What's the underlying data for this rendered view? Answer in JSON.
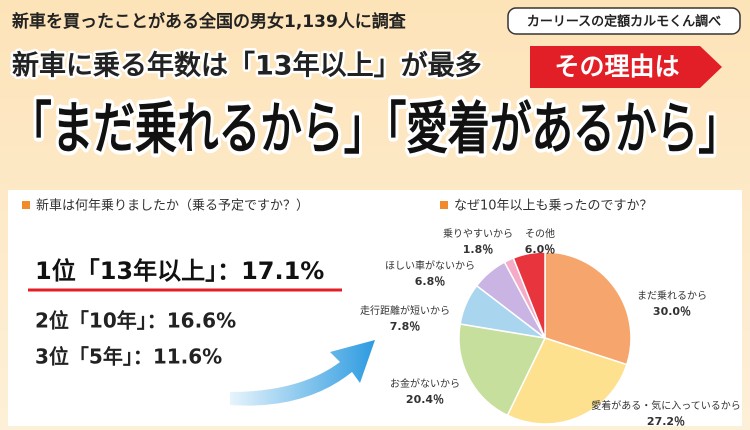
{
  "header": {
    "survey": "新車を買ったことがある全国の男女1,139人に調査",
    "source": "カーリースの定額カルモくん調べ",
    "headline": "新車に乗る年数は「13年以上」が最多",
    "tag": "その理由は",
    "main": "「まだ乗れるから」「愛着があるから」"
  },
  "ranking": {
    "question": "新車は何年乗りましたか（乗る予定ですか？）",
    "items": [
      "1位「13年以上」：17.1%",
      "2位「10年」：16.6%",
      "3位「5年」：11.6%"
    ]
  },
  "chart_data": {
    "type": "pie",
    "title": "なぜ10年以上も乗ったのですか？",
    "categories": [
      "まだ乗れるから",
      "愛着がある・気に入っているから",
      "お金がないから",
      "走行距離が短いから",
      "ほしい車がないから",
      "乗りやすいから",
      "その他"
    ],
    "values": [
      30.0,
      27.2,
      20.4,
      7.8,
      6.8,
      1.8,
      6.0
    ],
    "value_labels": [
      "30.0％",
      "27.2％",
      "20.4％",
      "7.8％",
      "6.8％",
      "1.8％",
      "6.0％"
    ],
    "colors": [
      "#f6a66c",
      "#fde18e",
      "#c6df9c",
      "#aad5ef",
      "#cab4e4",
      "#f5aac7",
      "#e8353d"
    ]
  }
}
